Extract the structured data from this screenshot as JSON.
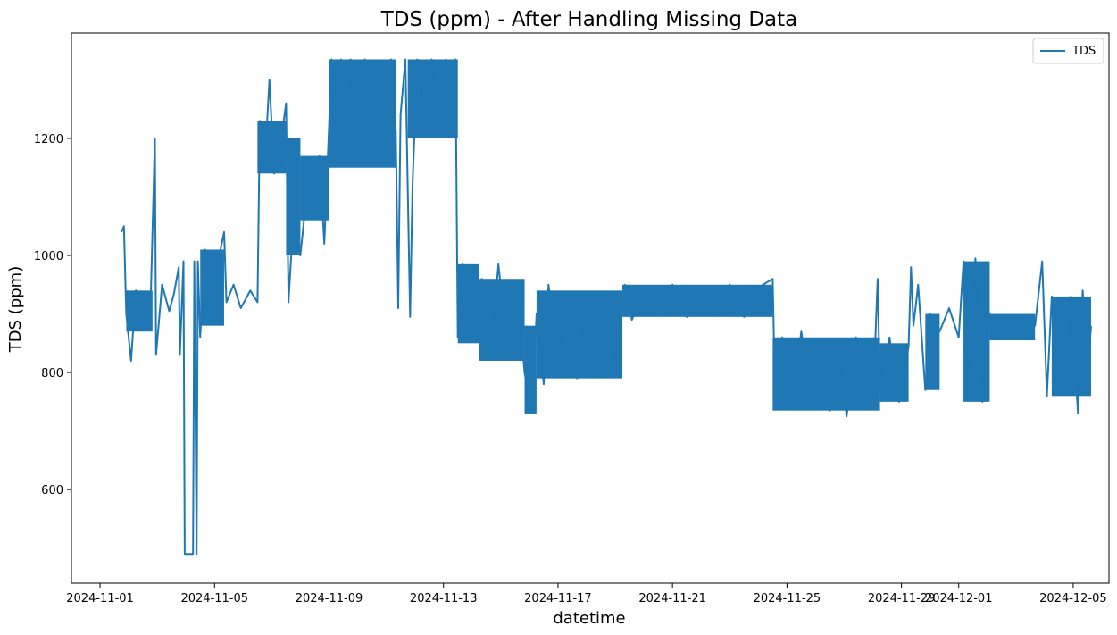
{
  "chart_data": {
    "type": "line",
    "title": "TDS (ppm) - After Handling Missing Data",
    "xlabel": "datetime",
    "ylabel": "TDS (ppm)",
    "x_axis": "date",
    "xlim": [
      "2024-10-31T00:00",
      "2024-12-06T06:00"
    ],
    "ylim": [
      440,
      1380
    ],
    "x_ticks": [
      "2024-11-01",
      "2024-11-05",
      "2024-11-09",
      "2024-11-13",
      "2024-11-17",
      "2024-11-21",
      "2024-11-25",
      "2024-11-29",
      "2024-12-01",
      "2024-12-05"
    ],
    "y_ticks": [
      600,
      800,
      1000,
      1200
    ],
    "grid": false,
    "legend": {
      "position": "top-right",
      "entries": [
        "TDS"
      ]
    },
    "series": [
      {
        "name": "TDS",
        "color": "#1f77b4",
        "points": [
          [
            "2024-11-01T18:00",
            1040
          ],
          [
            "2024-11-01T20:00",
            1050
          ],
          [
            "2024-11-01T22:00",
            900
          ],
          [
            "2024-11-02T02:00",
            820
          ],
          [
            "2024-11-02T06:00",
            940
          ],
          [
            "2024-11-02T10:00",
            880
          ],
          [
            "2024-11-02T14:00",
            930
          ],
          [
            "2024-11-02T18:00",
            890
          ],
          [
            "2024-11-02T22:00",
            1200
          ],
          [
            "2024-11-02T23:00",
            830
          ],
          [
            "2024-11-03T04:00",
            950
          ],
          [
            "2024-11-03T10:00",
            905
          ],
          [
            "2024-11-03T14:00",
            935
          ],
          [
            "2024-11-03T18:00",
            980
          ],
          [
            "2024-11-03T19:00",
            830
          ],
          [
            "2024-11-03T22:00",
            990
          ],
          [
            "2024-11-03T23:00",
            490
          ],
          [
            "2024-11-04T06:00",
            490
          ],
          [
            "2024-11-04T07:00",
            990
          ],
          [
            "2024-11-04T09:00",
            490
          ],
          [
            "2024-11-04T10:00",
            990
          ],
          [
            "2024-11-04T12:00",
            860
          ],
          [
            "2024-11-04T16:00",
            1010
          ],
          [
            "2024-11-04T22:00",
            960
          ],
          [
            "2024-11-05T04:00",
            1000
          ],
          [
            "2024-11-05T08:00",
            1040
          ],
          [
            "2024-11-05T10:00",
            920
          ],
          [
            "2024-11-05T16:00",
            950
          ],
          [
            "2024-11-05T22:00",
            910
          ],
          [
            "2024-11-06T06:00",
            940
          ],
          [
            "2024-11-06T12:00",
            920
          ],
          [
            "2024-11-06T14:00",
            1230
          ],
          [
            "2024-11-06T18:00",
            1150
          ],
          [
            "2024-11-06T22:00",
            1300
          ],
          [
            "2024-11-07T02:00",
            1140
          ],
          [
            "2024-11-07T08:00",
            1200
          ],
          [
            "2024-11-07T12:00",
            1260
          ],
          [
            "2024-11-07T14:00",
            920
          ],
          [
            "2024-11-07T18:00",
            1060
          ],
          [
            "2024-11-08T00:00",
            1000
          ],
          [
            "2024-11-08T04:00",
            1080
          ],
          [
            "2024-11-08T08:00",
            1150
          ],
          [
            "2024-11-08T12:00",
            1100
          ],
          [
            "2024-11-08T16:00",
            1170
          ],
          [
            "2024-11-08T20:00",
            1020
          ],
          [
            "2024-11-09T00:00",
            1220
          ],
          [
            "2024-11-09T02:00",
            1335
          ],
          [
            "2024-11-09T06:00",
            1180
          ],
          [
            "2024-11-09T10:00",
            1335
          ],
          [
            "2024-11-09T14:00",
            1160
          ],
          [
            "2024-11-09T18:00",
            1335
          ],
          [
            "2024-11-10T00:00",
            1170
          ],
          [
            "2024-11-10T06:00",
            1335
          ],
          [
            "2024-11-10T12:00",
            1190
          ],
          [
            "2024-11-10T18:00",
            1260
          ],
          [
            "2024-11-11T00:00",
            1300
          ],
          [
            "2024-11-11T04:00",
            1335
          ],
          [
            "2024-11-11T08:00",
            1210
          ],
          [
            "2024-11-11T10:00",
            910
          ],
          [
            "2024-11-11T12:00",
            1240
          ],
          [
            "2024-11-11T16:00",
            1335
          ],
          [
            "2024-11-11T20:00",
            895
          ],
          [
            "2024-11-11T22:00",
            1120
          ],
          [
            "2024-11-12T02:00",
            1335
          ],
          [
            "2024-11-12T08:00",
            1230
          ],
          [
            "2024-11-12T14:00",
            1335
          ],
          [
            "2024-11-12T20:00",
            1210
          ],
          [
            "2024-11-13T02:00",
            1335
          ],
          [
            "2024-11-13T08:00",
            1240
          ],
          [
            "2024-11-13T10:00",
            1335
          ],
          [
            "2024-11-13T12:00",
            860
          ],
          [
            "2024-11-13T16:00",
            985
          ],
          [
            "2024-11-14T00:00",
            880
          ],
          [
            "2024-11-14T08:00",
            960
          ],
          [
            "2024-11-14T16:00",
            840
          ],
          [
            "2024-11-14T22:00",
            985
          ],
          [
            "2024-11-15T06:00",
            830
          ],
          [
            "2024-11-15T14:00",
            940
          ],
          [
            "2024-11-15T20:00",
            800
          ],
          [
            "2024-11-16T02:00",
            730
          ],
          [
            "2024-11-16T06:00",
            900
          ],
          [
            "2024-11-16T12:00",
            780
          ],
          [
            "2024-11-16T16:00",
            950
          ],
          [
            "2024-11-17T00:00",
            820
          ],
          [
            "2024-11-17T08:00",
            920
          ],
          [
            "2024-11-17T16:00",
            790
          ],
          [
            "2024-11-18T00:00",
            930
          ],
          [
            "2024-11-18T08:00",
            800
          ],
          [
            "2024-11-18T16:00",
            920
          ],
          [
            "2024-11-19T00:00",
            810
          ],
          [
            "2024-11-19T06:00",
            920
          ],
          [
            "2024-11-19T08:00",
            950
          ],
          [
            "2024-11-19T14:00",
            890
          ],
          [
            "2024-11-20T00:00",
            945
          ],
          [
            "2024-11-20T12:00",
            900
          ],
          [
            "2024-11-21T00:00",
            950
          ],
          [
            "2024-11-21T12:00",
            895
          ],
          [
            "2024-11-22T00:00",
            945
          ],
          [
            "2024-11-22T12:00",
            900
          ],
          [
            "2024-11-23T00:00",
            950
          ],
          [
            "2024-11-23T12:00",
            895
          ],
          [
            "2024-11-24T00:00",
            945
          ],
          [
            "2024-11-24T12:00",
            960
          ],
          [
            "2024-11-24T14:00",
            760
          ],
          [
            "2024-11-24T20:00",
            860
          ],
          [
            "2024-11-25T04:00",
            740
          ],
          [
            "2024-11-25T12:00",
            870
          ],
          [
            "2024-11-25T20:00",
            750
          ],
          [
            "2024-11-26T04:00",
            845
          ],
          [
            "2024-11-26T12:00",
            735
          ],
          [
            "2024-11-26T20:00",
            840
          ],
          [
            "2024-11-27T02:00",
            725
          ],
          [
            "2024-11-27T10:00",
            860
          ],
          [
            "2024-11-27T18:00",
            745
          ],
          [
            "2024-11-28T02:00",
            850
          ],
          [
            "2024-11-28T04:00",
            960
          ],
          [
            "2024-11-28T06:00",
            770
          ],
          [
            "2024-11-28T14:00",
            860
          ],
          [
            "2024-11-28T22:00",
            750
          ],
          [
            "2024-11-29T06:00",
            845
          ],
          [
            "2024-11-29T08:00",
            980
          ],
          [
            "2024-11-29T10:00",
            880
          ],
          [
            "2024-11-29T14:00",
            950
          ],
          [
            "2024-11-29T20:00",
            770
          ],
          [
            "2024-11-30T00:00",
            900
          ],
          [
            "2024-11-30T08:00",
            870
          ],
          [
            "2024-11-30T16:00",
            910
          ],
          [
            "2024-12-01T00:00",
            860
          ],
          [
            "2024-12-01T04:00",
            990
          ],
          [
            "2024-12-01T08:00",
            760
          ],
          [
            "2024-12-01T14:00",
            995
          ],
          [
            "2024-12-01T20:00",
            750
          ],
          [
            "2024-12-02T02:00",
            900
          ],
          [
            "2024-12-02T10:00",
            880
          ],
          [
            "2024-12-02T20:00",
            890
          ],
          [
            "2024-12-03T06:00",
            865
          ],
          [
            "2024-12-03T16:00",
            880
          ],
          [
            "2024-12-03T22:00",
            990
          ],
          [
            "2024-12-04T02:00",
            760
          ],
          [
            "2024-12-04T06:00",
            930
          ],
          [
            "2024-12-04T12:00",
            880
          ],
          [
            "2024-12-04T18:00",
            790
          ],
          [
            "2024-12-04T22:00",
            930
          ],
          [
            "2024-12-05T04:00",
            730
          ],
          [
            "2024-12-05T08:00",
            940
          ],
          [
            "2024-12-05T12:00",
            800
          ],
          [
            "2024-12-05T15:00",
            880
          ]
        ],
        "bands": [
          [
            "2024-11-01T22:00",
            "2024-11-02T20:00",
            870,
            940
          ],
          [
            "2024-11-04T12:00",
            "2024-11-05T08:00",
            880,
            1010
          ],
          [
            "2024-11-06T12:00",
            "2024-11-07T12:00",
            1140,
            1230
          ],
          [
            "2024-11-07T12:00",
            "2024-11-08T00:00",
            1000,
            1200
          ],
          [
            "2024-11-08T00:00",
            "2024-11-09T00:00",
            1060,
            1170
          ],
          [
            "2024-11-09T00:00",
            "2024-11-11T08:00",
            1150,
            1335
          ],
          [
            "2024-11-11T18:00",
            "2024-11-13T12:00",
            1200,
            1335
          ],
          [
            "2024-11-13T12:00",
            "2024-11-14T06:00",
            850,
            985
          ],
          [
            "2024-11-14T06:00",
            "2024-11-15T20:00",
            820,
            960
          ],
          [
            "2024-11-15T20:00",
            "2024-11-16T06:00",
            730,
            880
          ],
          [
            "2024-11-16T06:00",
            "2024-11-19T06:00",
            790,
            940
          ],
          [
            "2024-11-19T06:00",
            "2024-11-24T12:00",
            895,
            950
          ],
          [
            "2024-11-24T12:00",
            "2024-11-28T06:00",
            735,
            860
          ],
          [
            "2024-11-28T06:00",
            "2024-11-29T06:00",
            750,
            850
          ],
          [
            "2024-11-29T20:00",
            "2024-11-30T08:00",
            770,
            900
          ],
          [
            "2024-12-01T04:00",
            "2024-12-02T02:00",
            750,
            990
          ],
          [
            "2024-12-02T02:00",
            "2024-12-03T16:00",
            855,
            900
          ],
          [
            "2024-12-04T06:00",
            "2024-12-05T15:00",
            760,
            930
          ]
        ]
      }
    ]
  }
}
